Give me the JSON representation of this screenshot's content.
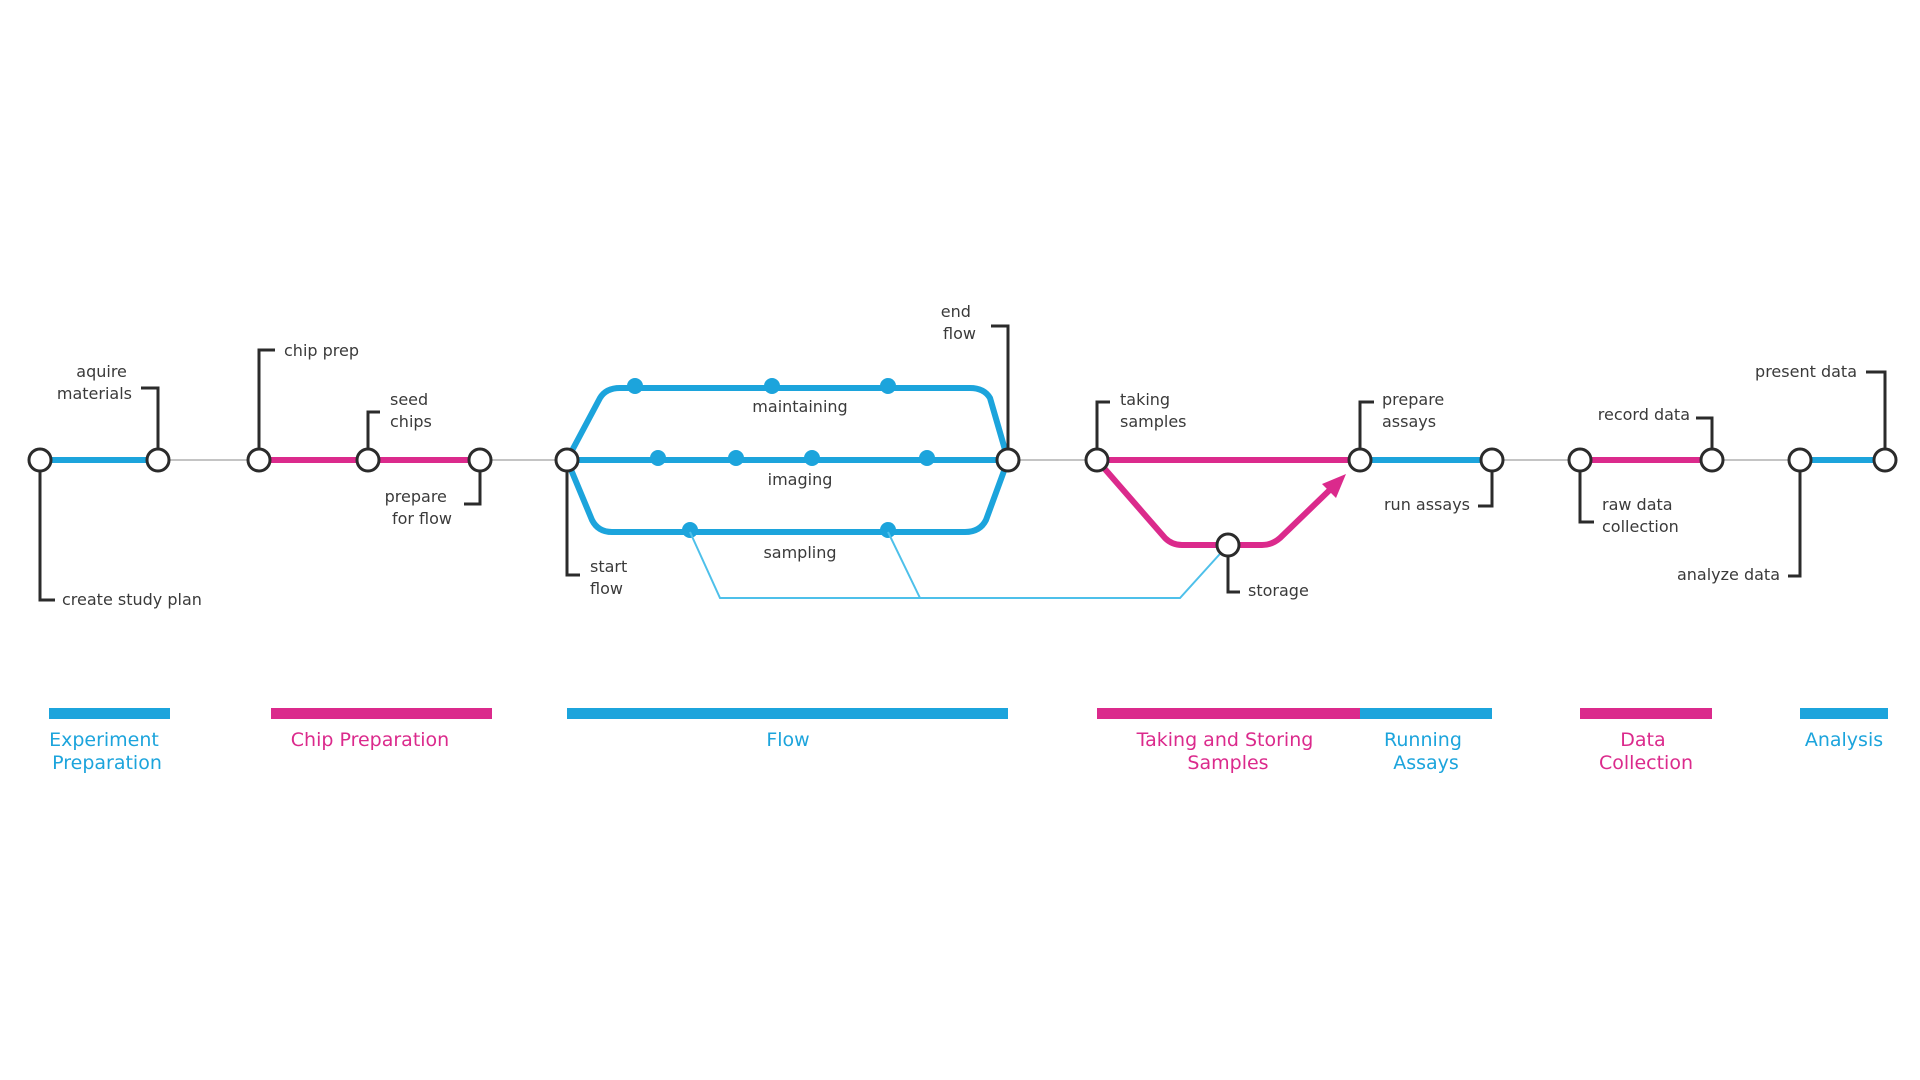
{
  "colors": {
    "blue": "#1ca4dc",
    "light_blue": "#4ec0ea",
    "magenta": "#db2a8c",
    "grey_line": "#c4c4c4",
    "node_stroke": "#2b2b2b",
    "label": "#3a3a3a"
  },
  "labels": {
    "create_study_plan": "create study plan",
    "aquire_materials": [
      "aquire",
      "materials"
    ],
    "chip_prep": "chip prep",
    "seed_chips": [
      "seed",
      "chips"
    ],
    "prepare_for_flow": [
      "prepare",
      "for flow"
    ],
    "start_flow": [
      "start",
      "flow"
    ],
    "end_flow": [
      "end",
      "flow"
    ],
    "maintaining": "maintaining",
    "imaging": "imaging",
    "sampling": "sampling",
    "taking_samples": [
      "taking",
      "samples"
    ],
    "storage": "storage",
    "prepare_assays": [
      "prepare",
      "assays"
    ],
    "run_assays": "run assays",
    "record_data": "record data",
    "raw_data_collection": [
      "raw data",
      "collection"
    ],
    "analyze_data": "analyze data",
    "present_data": "present data"
  },
  "phases": [
    {
      "id": "experiment",
      "lines": [
        "Experiment",
        "Preparation"
      ],
      "color": "#1ca4dc"
    },
    {
      "id": "chip",
      "lines": [
        "Chip Preparation"
      ],
      "color": "#db2a8c"
    },
    {
      "id": "flow",
      "lines": [
        "Flow"
      ],
      "color": "#1ca4dc"
    },
    {
      "id": "taking",
      "lines": [
        "Taking and Storing",
        "Samples"
      ],
      "color": "#db2a8c"
    },
    {
      "id": "running",
      "lines": [
        "Running",
        "Assays"
      ],
      "color": "#1ca4dc"
    },
    {
      "id": "data",
      "lines": [
        "Data",
        "Collection"
      ],
      "color": "#db2a8c"
    },
    {
      "id": "analysis",
      "lines": [
        "Analysis"
      ],
      "color": "#1ca4dc"
    }
  ]
}
